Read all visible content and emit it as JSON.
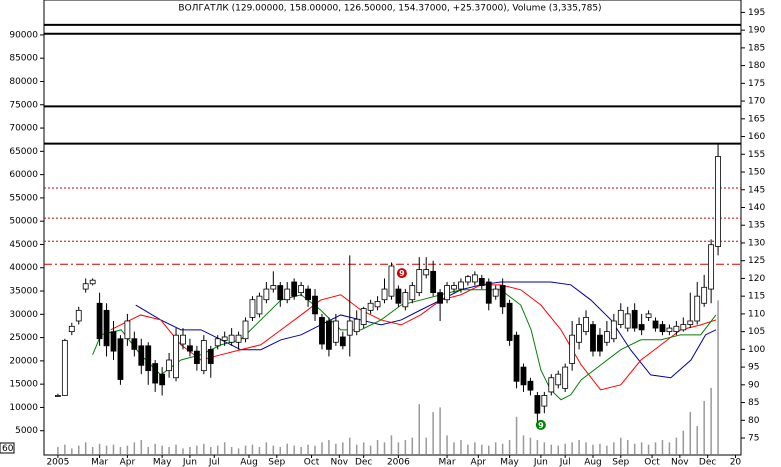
{
  "chart_data": {
    "type": "candlestick",
    "title": "ВОЛГАТЛК (129.00000, 158.00000, 126.50000, 154.37000, +25.37000), Volume (3,335,785)",
    "corner_label": "60",
    "categories": [
      null,
      null,
      null,
      null,
      null,
      null,
      null,
      null,
      null,
      null,
      null,
      null,
      null,
      null,
      null,
      null,
      null,
      null,
      null,
      null,
      null,
      null,
      null,
      null,
      null,
      null,
      null,
      null,
      null,
      null,
      null,
      null,
      null,
      null,
      null,
      null,
      null,
      null,
      null,
      null,
      null,
      null,
      null,
      null,
      null,
      null,
      null,
      null,
      null,
      null,
      null,
      null,
      null,
      null,
      null,
      null,
      null,
      null,
      null,
      null,
      null,
      null,
      null,
      null,
      null,
      null,
      null,
      null,
      null,
      null,
      null,
      null,
      null,
      null,
      null,
      null,
      null,
      null,
      null,
      null,
      null,
      null,
      null,
      null,
      null,
      null,
      null,
      null,
      null,
      null,
      null,
      null,
      null,
      null,
      null,
      null
    ],
    "open": [
      87,
      87,
      105,
      108,
      117,
      118.5,
      113,
      111,
      105,
      103,
      103,
      103,
      101,
      101,
      96,
      93,
      94,
      92,
      101.5,
      101,
      99.5,
      94,
      100,
      101,
      102.5,
      102,
      102,
      103,
      109,
      110,
      114,
      117,
      118,
      114,
      119,
      116,
      117,
      115,
      109,
      108,
      102,
      103.5,
      104,
      105,
      107,
      111,
      112,
      114,
      115,
      117,
      112,
      114,
      116,
      121,
      122,
      116,
      114,
      117,
      117,
      119,
      119,
      120,
      119,
      115,
      118,
      113,
      104,
      95,
      91,
      87,
      84,
      88,
      90,
      89,
      96,
      102,
      105,
      107,
      104,
      102,
      103,
      107,
      106,
      111,
      107,
      109,
      108,
      107,
      105,
      105,
      105.5,
      107,
      108,
      113,
      117,
      129
    ],
    "high": [
      87.5,
      103,
      107.5,
      112,
      120,
      120,
      116,
      113,
      108,
      104,
      110,
      105,
      103,
      102,
      97,
      95,
      99,
      106,
      106,
      103,
      101,
      104,
      101,
      104,
      105,
      106,
      105,
      109,
      115,
      116,
      119,
      122,
      119,
      119,
      120,
      119,
      118,
      117,
      110,
      109,
      110,
      105,
      126.5,
      111,
      112,
      114,
      115,
      120,
      124.5,
      118,
      117,
      119,
      126,
      126,
      125,
      117,
      119,
      119,
      120,
      121,
      122,
      121,
      120,
      118,
      120,
      114,
      105,
      96,
      92,
      88,
      88,
      93,
      94,
      96,
      108,
      109,
      111,
      108,
      106,
      108,
      110,
      113,
      112,
      113,
      110,
      111,
      109,
      108,
      107,
      108,
      109,
      116,
      119,
      121,
      131,
      158
    ],
    "low": [
      87,
      87,
      104,
      107,
      116,
      118,
      101,
      98,
      97,
      90,
      101,
      98,
      93,
      90,
      88,
      87,
      92,
      91,
      100,
      98,
      94,
      93,
      92,
      100,
      101,
      101,
      100,
      102,
      108,
      109,
      113,
      116,
      112,
      113,
      114,
      115,
      112,
      108,
      100,
      98,
      101,
      100,
      98,
      104,
      106,
      110,
      111,
      113,
      114,
      112,
      111,
      113,
      115,
      120,
      115,
      108,
      113,
      116,
      116,
      118,
      118,
      117,
      111,
      114,
      110,
      101,
      89,
      88,
      87,
      79,
      82,
      87,
      89,
      88,
      94,
      100,
      104,
      98,
      98,
      101,
      102,
      106,
      105,
      105,
      104,
      108,
      105,
      104,
      104,
      104,
      105,
      106,
      107,
      112,
      113,
      126.5
    ],
    "close": [
      87,
      102.5,
      106.5,
      111,
      118.5,
      119.5,
      103,
      101,
      99.5,
      91.5,
      108,
      100,
      95.5,
      94,
      90.5,
      90,
      97,
      104,
      104,
      99.5,
      96,
      102.5,
      96,
      103,
      103.5,
      104,
      104,
      108,
      114,
      115,
      117,
      118,
      114,
      117,
      115,
      118,
      114,
      110,
      101.5,
      100,
      108,
      101,
      108,
      108.5,
      111.5,
      113,
      113.5,
      117,
      123.5,
      113,
      116,
      118,
      122.5,
      122.5,
      116,
      113,
      118,
      118,
      119,
      120.5,
      121,
      118,
      113,
      117,
      112,
      102.5,
      91,
      90,
      88.5,
      82,
      87,
      92,
      93,
      95,
      104,
      107,
      109,
      99.5,
      99.5,
      105,
      108,
      111,
      110,
      106,
      105.5,
      110,
      106,
      105,
      106,
      106.5,
      107,
      108,
      115,
      117.5,
      129.5,
      154.37
    ],
    "up_color": "#ffffff",
    "down_color": "#000000",
    "volume": {
      "axis": "y2",
      "color": "#999999",
      "values": [
        1500,
        2000,
        1200,
        1800,
        2500,
        1500,
        2200,
        1800,
        2000,
        1500,
        1800,
        2500,
        3000,
        1500,
        2200,
        1800,
        1500,
        2000,
        1200,
        1500,
        1800,
        2200,
        1500,
        1800,
        2500,
        1500,
        1200,
        1800,
        2000,
        1500,
        2500,
        1800,
        1500,
        2200,
        1800,
        1500,
        2000,
        1800,
        2500,
        3000,
        2200,
        2500,
        3500,
        2000,
        2500,
        1800,
        3000,
        2500,
        4000,
        2500,
        3000,
        3500,
        10700,
        3500,
        9000,
        10000,
        4000,
        2500,
        3000,
        2000,
        2500,
        2000,
        1800,
        2500,
        2200,
        3000,
        8000,
        4000,
        3500,
        3000,
        2500,
        2000,
        1800,
        2200,
        2500,
        3000,
        2500,
        2000,
        2200,
        1800,
        2500,
        3500,
        3000,
        2200,
        2500,
        2000,
        2500,
        3000,
        2500,
        3500,
        5000,
        9000,
        6000,
        11400,
        14200,
        33000
      ]
    },
    "lines": [
      {
        "color": "#0000a0",
        "x": [
          11.2,
          14.8,
          17.7,
          20.6,
          23.5,
          26.3,
          29.2,
          32.1,
          35,
          37.8,
          40.7,
          43.6,
          46.5,
          49.4,
          52.2,
          55.1,
          58,
          60.9,
          63.7,
          66.6,
          70.9,
          73.8,
          76.7,
          79.6,
          82.4,
          85.3,
          88.2,
          91.1,
          93.2,
          94.7
        ],
        "values": [
          112.5,
          108.3,
          105.5,
          105.5,
          102.7,
          99.9,
          99.9,
          102.7,
          104.1,
          106.9,
          109.7,
          108.3,
          106.9,
          108.3,
          111.1,
          113.9,
          116.8,
          118.2,
          119,
          119,
          119,
          118.2,
          113.9,
          108.3,
          99.9,
          92.8,
          92,
          97,
          104.1,
          105.5
        ]
      },
      {
        "color": "#ff0000",
        "x": [
          7.6,
          11.9,
          14.8,
          17.7,
          20.6,
          23.5,
          26.3,
          29.2,
          32.1,
          35,
          37.8,
          40.7,
          43.6,
          46.5,
          49.4,
          52.2,
          55.1,
          58,
          60.9,
          63.7,
          66.6,
          69.5,
          72.4,
          75.3,
          78.1,
          81,
          83.9,
          86.8,
          89.6,
          92.5,
          94.7
        ],
        "values": [
          105.5,
          109.7,
          108.3,
          101.3,
          97,
          98.5,
          99.9,
          101.3,
          105.5,
          109.7,
          113.9,
          115.4,
          111.1,
          108.3,
          106.9,
          109.7,
          113.9,
          115.4,
          118.2,
          118.2,
          116.8,
          112.5,
          105.5,
          95.6,
          88.6,
          90,
          97,
          101.3,
          105.5,
          106.9,
          108.3
        ]
      },
      {
        "color": "#008000",
        "x": [
          5,
          6.2,
          9.1,
          11.9,
          14.8,
          17.7,
          20.6,
          23.5,
          26.3,
          29.2,
          32.1,
          35,
          37.8,
          40.7,
          43.6,
          46.5,
          49.4,
          52.2,
          55.1,
          58,
          60.9,
          63.7,
          66.6,
          68.1,
          69.5,
          70.9,
          72.4,
          73.8,
          75.3,
          78.1,
          81,
          83.9,
          86.8,
          89.6,
          92.5,
          94.7
        ],
        "values": [
          98.5,
          104.1,
          105.5,
          98.5,
          92.8,
          97,
          98.5,
          101.3,
          102.7,
          108.3,
          113.9,
          115.4,
          111.1,
          105.5,
          105.5,
          108.3,
          112.5,
          113.9,
          115.4,
          116.8,
          116.8,
          116.8,
          112.5,
          105.5,
          94.2,
          88.6,
          85.8,
          87.2,
          91.4,
          95.6,
          99.9,
          102.7,
          102.7,
          104.1,
          104.1,
          109.7
        ]
      }
    ],
    "levels": [
      {
        "value": 191.5,
        "color": "#000000",
        "style": "solid"
      },
      {
        "value": 189,
        "color": "#000000",
        "style": "solid"
      },
      {
        "value": 168.5,
        "color": "#000000",
        "style": "solid"
      },
      {
        "value": 158,
        "color": "#000000",
        "style": "solid"
      },
      {
        "value": 145.5,
        "color": "#cc0000",
        "style": "dotted"
      },
      {
        "value": 137,
        "color": "#cc0000",
        "style": "dotted"
      },
      {
        "value": 130.5,
        "color": "#cc0000",
        "style": "dotted"
      },
      {
        "value": 124,
        "color": "#cc0000",
        "style": "dashdot"
      }
    ],
    "annotations": [
      {
        "label": "9",
        "x": 49.5,
        "y": 121.5,
        "color": "#cc0000"
      },
      {
        "label": "9",
        "x": 69.5,
        "y": 78.7,
        "color": "#008000"
      }
    ],
    "xlim": [
      -2,
      98.3
    ],
    "ylim": [
      70.5,
      198.5
    ],
    "y2lim": [
      0,
      97500
    ],
    "xticks": [
      {
        "value": 0,
        "label": "2005"
      },
      {
        "value": 6,
        "label": "Mar"
      },
      {
        "value": 10,
        "label": "Apr"
      },
      {
        "value": 15,
        "label": "May"
      },
      {
        "value": 19,
        "label": "Jun"
      },
      {
        "value": 22.5,
        "label": "Jul"
      },
      {
        "value": 27.5,
        "label": "Aug"
      },
      {
        "value": 31.5,
        "label": "Sep"
      },
      {
        "value": 36.5,
        "label": "Oct"
      },
      {
        "value": 40.5,
        "label": "Nov"
      },
      {
        "value": 44,
        "label": "Dec"
      },
      {
        "value": 49,
        "label": "2006"
      },
      {
        "value": 56,
        "label": "Mar"
      },
      {
        "value": 60.5,
        "label": "Apr"
      },
      {
        "value": 65,
        "label": "May"
      },
      {
        "value": 69.5,
        "label": "Jun"
      },
      {
        "value": 73,
        "label": "Jul"
      },
      {
        "value": 77,
        "label": "Aug"
      },
      {
        "value": 81,
        "label": "Sep"
      },
      {
        "value": 85.5,
        "label": "Oct"
      },
      {
        "value": 89.5,
        "label": "Nov"
      },
      {
        "value": 93.5,
        "label": "Dec"
      },
      {
        "value": 97.5,
        "label": "20"
      }
    ],
    "yticks": [
      75,
      80,
      85,
      90,
      95,
      100,
      105,
      110,
      115,
      120,
      125,
      130,
      135,
      140,
      145,
      150,
      155,
      160,
      165,
      170,
      175,
      180,
      185,
      190,
      195
    ],
    "y2ticks": [
      5000,
      10000,
      15000,
      20000,
      25000,
      30000,
      35000,
      40000,
      45000,
      50000,
      55000,
      60000,
      65000,
      70000,
      75000,
      80000,
      85000,
      90000
    ]
  }
}
